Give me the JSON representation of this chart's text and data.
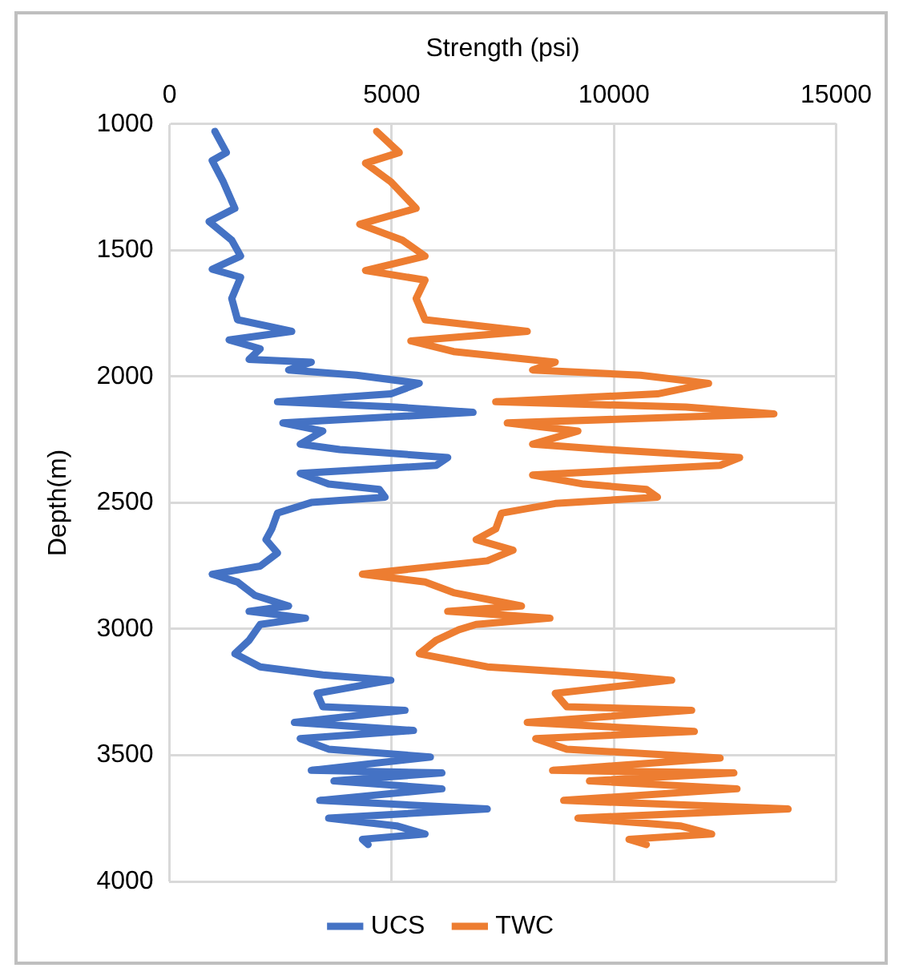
{
  "chart_data": {
    "type": "line",
    "xlabel": "Strength (psi)",
    "ylabel": "Depth(m)",
    "xlim": [
      0,
      15000
    ],
    "xticks": [
      0,
      5000,
      10000,
      15000
    ],
    "ylim": [
      4000,
      1000
    ],
    "yticks": [
      1000,
      1500,
      2000,
      2500,
      3000,
      3500,
      4000
    ],
    "grid": true,
    "legend": "bottom",
    "marker": "none",
    "line_style": "solid",
    "series": [
      {
        "name": "UCS",
        "color": "#4472c4",
        "x": [
          1020,
          1280,
          960,
          1210,
          1470,
          890,
          1400,
          1600,
          960,
          1600,
          1400,
          1530,
          2750,
          1340,
          2040,
          1790,
          3190,
          2680,
          4210,
          5620,
          4980,
          2430,
          5110,
          6830,
          2550,
          3450,
          2940,
          3830,
          6260,
          6000,
          2940,
          3580,
          4720,
          4850,
          3190,
          2430,
          2300,
          2170,
          2430,
          2040,
          960,
          1530,
          1920,
          2680,
          1790,
          3060,
          2040,
          1790,
          1470,
          2040,
          3450,
          4980,
          3320,
          3450,
          5300,
          2810,
          5490,
          2940,
          3580,
          5870,
          3190,
          6130,
          3700,
          6130,
          3380,
          7150,
          3580,
          5110,
          5750,
          4340,
          4470
        ],
        "values": [
          1029,
          1113,
          1145,
          1229,
          1334,
          1386,
          1460,
          1523,
          1575,
          1607,
          1691,
          1775,
          1821,
          1855,
          1890,
          1932,
          1943,
          1974,
          1995,
          2027,
          2069,
          2100,
          2121,
          2142,
          2184,
          2216,
          2268,
          2289,
          2321,
          2352,
          2384,
          2426,
          2447,
          2478,
          2499,
          2541,
          2604,
          2646,
          2699,
          2751,
          2783,
          2814,
          2867,
          2909,
          2930,
          2957,
          2982,
          3045,
          3098,
          3150,
          3182,
          3203,
          3255,
          3308,
          3322,
          3370,
          3402,
          3434,
          3476,
          3507,
          3560,
          3570,
          3602,
          3633,
          3679,
          3713,
          3749,
          3780,
          3812,
          3833,
          3854
        ]
      },
      {
        "name": "TWC",
        "color": "#ed7d31",
        "x": [
          4660,
          5170,
          4410,
          4980,
          5550,
          4280,
          5240,
          5750,
          4410,
          5750,
          5550,
          5750,
          8050,
          5430,
          6390,
          8680,
          8170,
          10600,
          12130,
          10980,
          7340,
          11620,
          13600,
          7600,
          9190,
          8170,
          9830,
          12830,
          12390,
          8170,
          9320,
          10730,
          10980,
          8680,
          7470,
          7340,
          6900,
          7730,
          7150,
          4340,
          5750,
          6390,
          7920,
          6260,
          8560,
          6900,
          6510,
          6000,
          5620,
          7150,
          9960,
          11300,
          8680,
          8940,
          11750,
          8050,
          11810,
          8240,
          8940,
          12390,
          8620,
          12700,
          9450,
          12770,
          8870,
          13920,
          9190,
          11490,
          12200,
          10340,
          10730
        ],
        "values": [
          1029,
          1113,
          1155,
          1229,
          1334,
          1397,
          1460,
          1523,
          1580,
          1618,
          1691,
          1775,
          1821,
          1859,
          1901,
          1943,
          1974,
          1995,
          2027,
          2069,
          2100,
          2121,
          2148,
          2184,
          2216,
          2268,
          2289,
          2321,
          2352,
          2390,
          2426,
          2447,
          2478,
          2503,
          2541,
          2604,
          2646,
          2688,
          2730,
          2783,
          2814,
          2856,
          2909,
          2930,
          2957,
          2982,
          3003,
          3045,
          3098,
          3150,
          3182,
          3203,
          3255,
          3308,
          3322,
          3370,
          3406,
          3434,
          3476,
          3511,
          3560,
          3570,
          3602,
          3633,
          3679,
          3713,
          3749,
          3780,
          3812,
          3833,
          3854
        ]
      }
    ]
  }
}
